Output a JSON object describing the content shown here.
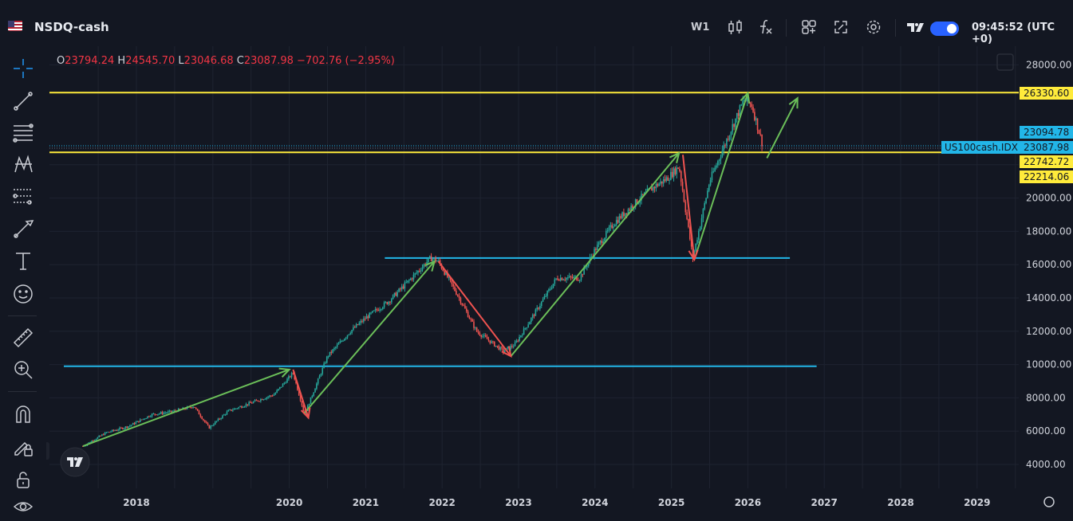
{
  "header": {
    "symbol": "NSDQ-cash",
    "timeframe": "W1",
    "clock": "09:45:52 (UTC +0)",
    "icons": [
      "candles-icon",
      "indicators-icon",
      "layout-icon",
      "fullscreen-icon",
      "settings-icon",
      "tv-logo-icon"
    ]
  },
  "legend": {
    "o_label": "O",
    "o": "23794.24",
    "h_label": "H",
    "h": "24545.70",
    "l_label": "L",
    "l": "23046.68",
    "c_label": "C",
    "c": "23087.98",
    "change": "−702.76 (−2.95%)"
  },
  "toolbar_icons": [
    "crosshair-icon",
    "trendline-icon",
    "fib-icon",
    "pattern-icon",
    "projection-icon",
    "brush-icon",
    "text-icon",
    "emoji-icon",
    "ruler-icon",
    "zoom-icon",
    "magnet-icon",
    "lock-draw-icon",
    "lock-icon",
    "eye-icon"
  ],
  "tags": {
    "sym_label": "US100cash.IDX",
    "p1": "26330.60",
    "p2": "23094.78",
    "p3": "23087.98",
    "p4": "22742.72",
    "p5": "22214.06"
  },
  "colors": {
    "bg": "#131722",
    "up": "#26a69a",
    "down": "#ef5350",
    "yellow": "#ffeb3b",
    "cyan": "#22b6e8",
    "arrow_green": "#6bbf59",
    "arrow_red": "#ef5350",
    "grid": "#1e2330"
  },
  "chart_data": {
    "type": "line",
    "x_ticks": [
      "2018",
      "2020",
      "2021",
      "2022",
      "2023",
      "2024",
      "2025",
      "2026",
      "2027",
      "2028",
      "2029"
    ],
    "y_ticks": [
      "4000.00",
      "6000.00",
      "8000.00",
      "10000.00",
      "12000.00",
      "14000.00",
      "16000.00",
      "18000.00",
      "20000.00",
      "22000.00",
      "28000.00"
    ],
    "ylim": [
      2800,
      29200
    ],
    "series": [
      {
        "x": [
          2017.3,
          2017.6,
          2017.9,
          2018.2,
          2018.5,
          2018.75,
          2018.95,
          2019.2,
          2019.5,
          2019.8,
          2020.05,
          2020.2,
          2020.5,
          2020.8,
          2021.0,
          2021.3,
          2021.6,
          2021.85,
          2021.95,
          2022.2,
          2022.45,
          2022.8,
          2022.95,
          2023.2,
          2023.5,
          2023.8,
          2024.0,
          2024.25,
          2024.5,
          2024.75,
          2024.95,
          2025.1,
          2025.28,
          2025.5,
          2025.75,
          2025.95,
          2026.05,
          2026.2
        ],
        "y": [
          5100,
          5900,
          6300,
          7000,
          7200,
          7500,
          6200,
          7200,
          7700,
          8200,
          9500,
          7000,
          10500,
          12000,
          12800,
          13800,
          15200,
          16400,
          16200,
          14200,
          12000,
          10800,
          11200,
          13000,
          15200,
          15200,
          16900,
          18500,
          19600,
          20600,
          21200,
          21900,
          16400,
          21000,
          23800,
          25900,
          25600,
          23088
        ]
      }
    ],
    "levels": {
      "yellow": [
        26330.6,
        22742.72
      ],
      "cyan": [
        16400,
        9900
      ]
    },
    "arrows": {
      "green": [
        [
          2017.3,
          5100,
          2020.0,
          9700
        ],
        [
          2020.2,
          7100,
          2021.9,
          16200
        ],
        [
          2022.9,
          10500,
          2025.1,
          22700
        ],
        [
          2025.3,
          16300,
          2026.0,
          26300
        ],
        [
          2026.25,
          22400,
          2026.65,
          26000
        ]
      ],
      "red": [
        [
          2020.05,
          9700,
          2020.25,
          6800
        ],
        [
          2021.95,
          16200,
          2022.9,
          10500
        ],
        [
          2025.15,
          22600,
          2025.3,
          16300
        ]
      ]
    }
  }
}
